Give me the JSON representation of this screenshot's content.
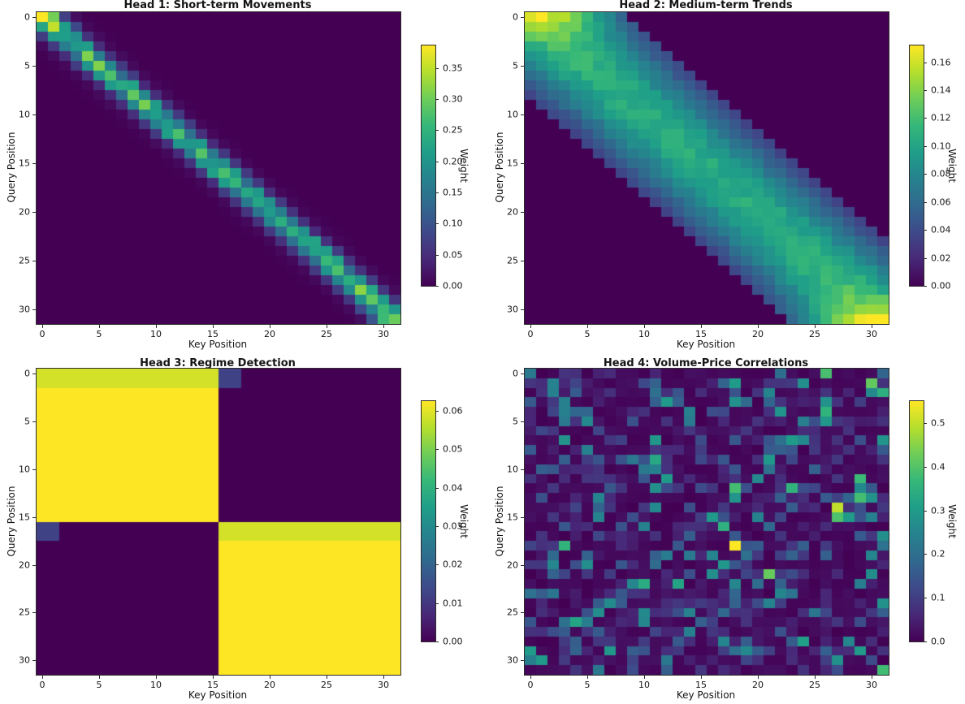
{
  "figure": {
    "background": "#ffffff",
    "text_color": "#151515",
    "layout": "2x2-subplots",
    "colormap": "viridis",
    "viridis_dark": "#440154",
    "viridis_bright": "#fde725"
  },
  "chart_data": [
    {
      "type": "heatmap",
      "title": "Head 1: Short-term Movements",
      "xlabel": "Key Position",
      "ylabel": "Query Position",
      "x_ticks": [
        0,
        5,
        10,
        15,
        20,
        25,
        30
      ],
      "y_ticks": [
        0,
        5,
        10,
        15,
        20,
        25,
        30
      ],
      "grid_size": 32,
      "colormap": "viridis",
      "vmin": 0,
      "vmax": 0.386,
      "colorbar": {
        "label": "Weight",
        "ticks": [
          {
            "value": 0.0,
            "label": "0.00"
          },
          {
            "value": 0.05,
            "label": "0.05"
          },
          {
            "value": 0.1,
            "label": "0.10"
          },
          {
            "value": 0.15,
            "label": "0.15"
          },
          {
            "value": 0.2,
            "label": "0.20"
          },
          {
            "value": 0.25,
            "label": "0.25"
          },
          {
            "value": 0.3,
            "label": "0.30"
          },
          {
            "value": 0.35,
            "label": "0.35"
          }
        ]
      },
      "pattern_note": "Narrow attention band on the main diagonal, ~0.26 on the diagonal fading over +/-3 cells; corner cells (0,0) and (31,31) peak near 0.385.",
      "pattern": {
        "kind": "diagonal_band",
        "peak": 0.26,
        "sigma": 1.15,
        "cutoff": 4,
        "corner_boost": 0.5,
        "corner_decay": 1.2,
        "noise": 0.25,
        "seed": 5
      }
    },
    {
      "type": "heatmap",
      "title": "Head 2: Medium-term Trends",
      "xlabel": "Key Position",
      "ylabel": "Query Position",
      "x_ticks": [
        0,
        5,
        10,
        15,
        20,
        25,
        30
      ],
      "y_ticks": [
        0,
        5,
        10,
        15,
        20,
        25,
        30
      ],
      "grid_size": 32,
      "colormap": "viridis",
      "vmin": 0,
      "vmax": 0.172,
      "colorbar": {
        "label": "Weight",
        "ticks": [
          {
            "value": 0.0,
            "label": "0.00"
          },
          {
            "value": 0.02,
            "label": "0.02"
          },
          {
            "value": 0.04,
            "label": "0.04"
          },
          {
            "value": 0.06,
            "label": "0.06"
          },
          {
            "value": 0.08,
            "label": "0.08"
          },
          {
            "value": 0.1,
            "label": "0.10"
          },
          {
            "value": 0.12,
            "label": "0.12"
          },
          {
            "value": 0.14,
            "label": "0.14"
          },
          {
            "value": 0.16,
            "label": "0.16"
          }
        ]
      },
      "pattern_note": "Wide diagonal band (|i-j| <= 8), ~0.105 at the diagonal decaying to ~0.035 at the band edge; corners (0,0) and (31,31) peak near 0.17.",
      "pattern": {
        "kind": "diagonal_band",
        "peak": 0.105,
        "sigma": 5.5,
        "cutoff": 8,
        "corner_boost": 0.62,
        "corner_decay": 2.2,
        "noise": 0.07,
        "seed": 9
      }
    },
    {
      "type": "heatmap",
      "title": "Head 3: Regime Detection",
      "xlabel": "Key Position",
      "ylabel": "Query Position",
      "x_ticks": [
        0,
        5,
        10,
        15,
        20,
        25,
        30
      ],
      "y_ticks": [
        0,
        5,
        10,
        15,
        20,
        25,
        30
      ],
      "grid_size": 32,
      "colormap": "viridis",
      "vmin": 0,
      "vmax": 0.0625,
      "colorbar": {
        "label": "Weight",
        "ticks": [
          {
            "value": 0.0,
            "label": "0.00"
          },
          {
            "value": 0.01,
            "label": "0.01"
          },
          {
            "value": 0.02,
            "label": "0.02"
          },
          {
            "value": 0.03,
            "label": "0.03"
          },
          {
            "value": 0.04,
            "label": "0.04"
          },
          {
            "value": 0.05,
            "label": "0.05"
          },
          {
            "value": 0.06,
            "label": "0.06"
          }
        ]
      },
      "pattern_note": "Two uniform block regimes: queries 0-15 attend keys 0-15 and queries 16-31 attend keys 16-31 at 1/16 = 0.0625; boundary rows 0-1 and 16-17 are slightly lower (~0.0585) with a small 2x2 leak (~0.0125) across the regime boundary.",
      "pattern": {
        "kind": "block_regimes",
        "regime_boundary": 16,
        "block_value": 0.0625,
        "transitions": [
          {
            "rows": [
              0,
              1
            ],
            "main_cols": [
              0,
              15
            ],
            "main_value": 0.0585,
            "leak_cols": [
              16,
              17
            ],
            "leak_value": 0.0125
          },
          {
            "rows": [
              16,
              17
            ],
            "main_cols": [
              16,
              31
            ],
            "main_value": 0.0585,
            "leak_cols": [
              0,
              1
            ],
            "leak_value": 0.0125
          }
        ]
      }
    },
    {
      "type": "heatmap",
      "title": "Head 4: Volume-Price Correlations",
      "xlabel": "Key Position",
      "ylabel": "Query Position",
      "x_ticks": [
        0,
        5,
        10,
        15,
        20,
        25,
        30
      ],
      "y_ticks": [
        0,
        5,
        10,
        15,
        20,
        25,
        30
      ],
      "grid_size": 32,
      "colormap": "viridis",
      "vmin": 0,
      "vmax": 0.55,
      "colorbar": {
        "label": "Weight",
        "ticks": [
          {
            "value": 0.0,
            "label": "0.0"
          },
          {
            "value": 0.1,
            "label": "0.1"
          },
          {
            "value": 0.2,
            "label": "0.2"
          },
          {
            "value": 0.3,
            "label": "0.3"
          },
          {
            "value": 0.4,
            "label": "0.4"
          },
          {
            "value": 0.5,
            "label": "0.5"
          }
        ]
      },
      "pattern_note": "Sparse noisy attention with a faint X (diagonal + anti-diagonal) structure; brightest cells: (18,18)=0.55, (14,27)=0.50, (21,21)=0.42.",
      "pattern": {
        "kind": "sparse_random",
        "seed": 13,
        "levels": [
          [
            0.52,
            0.0,
            0.025
          ],
          [
            0.78,
            0.03,
            0.06
          ],
          [
            0.92,
            0.09,
            0.09
          ],
          [
            0.975,
            0.18,
            0.12
          ],
          [
            1.0,
            0.28,
            0.14
          ]
        ],
        "cross_pattern": {
          "probability": 0.45,
          "base": 0.08,
          "range": 0.22
        },
        "notable_cells": [
          [
            0,
            0,
            0.22
          ],
          [
            1,
            18,
            0.3
          ],
          [
            1,
            24,
            0.27
          ],
          [
            2,
            2,
            0.24
          ],
          [
            2,
            30,
            0.26
          ],
          [
            3,
            26,
            0.28
          ],
          [
            4,
            14,
            0.24
          ],
          [
            5,
            5,
            0.26
          ],
          [
            7,
            3,
            0.28
          ],
          [
            7,
            23,
            0.3
          ],
          [
            7,
            24,
            0.26
          ],
          [
            9,
            11,
            0.33
          ],
          [
            10,
            10,
            0.22
          ],
          [
            11,
            12,
            0.3
          ],
          [
            12,
            11,
            0.27
          ],
          [
            13,
            30,
            0.28
          ],
          [
            14,
            27,
            0.5
          ],
          [
            15,
            28,
            0.3
          ],
          [
            16,
            10,
            0.24
          ],
          [
            17,
            31,
            0.27
          ],
          [
            18,
            18,
            0.55
          ],
          [
            19,
            16,
            0.25
          ],
          [
            21,
            16,
            0.27
          ],
          [
            21,
            21,
            0.42
          ],
          [
            22,
            13,
            0.32
          ],
          [
            24,
            31,
            0.28
          ],
          [
            25,
            10,
            0.26
          ],
          [
            26,
            4,
            0.32
          ],
          [
            27,
            14,
            0.24
          ],
          [
            28,
            24,
            0.31
          ],
          [
            29,
            19,
            0.26
          ],
          [
            30,
            12,
            0.22
          ],
          [
            31,
            6,
            0.22
          ]
        ]
      }
    }
  ]
}
